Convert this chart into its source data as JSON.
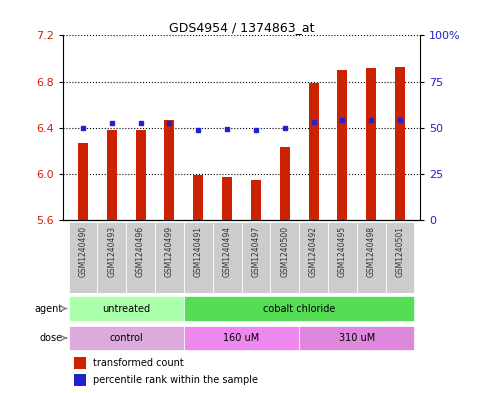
{
  "title": "GDS4954 / 1374863_at",
  "samples": [
    "GSM1240490",
    "GSM1240493",
    "GSM1240496",
    "GSM1240499",
    "GSM1240491",
    "GSM1240494",
    "GSM1240497",
    "GSM1240500",
    "GSM1240492",
    "GSM1240495",
    "GSM1240498",
    "GSM1240501"
  ],
  "bar_values": [
    6.27,
    6.38,
    6.38,
    6.47,
    5.99,
    5.97,
    5.95,
    6.23,
    6.79,
    6.9,
    6.92,
    6.93
  ],
  "dot_values": [
    6.4,
    6.44,
    6.44,
    6.44,
    6.38,
    6.39,
    6.38,
    6.4,
    6.45,
    6.47,
    6.47,
    6.47
  ],
  "bar_base": 5.6,
  "ylim": [
    5.6,
    7.2
  ],
  "yticks_left": [
    5.6,
    6.0,
    6.4,
    6.8,
    7.2
  ],
  "yticks_right": [
    0,
    25,
    50,
    75,
    100
  ],
  "bar_color": "#cc2200",
  "dot_color": "#2222cc",
  "agent_groups": [
    {
      "label": "untreated",
      "start": 0,
      "end": 4,
      "color": "#aaffaa"
    },
    {
      "label": "cobalt chloride",
      "start": 4,
      "end": 12,
      "color": "#55dd55"
    }
  ],
  "dose_groups": [
    {
      "label": "control",
      "start": 0,
      "end": 4,
      "color": "#ddaadd"
    },
    {
      "label": "160 uM",
      "start": 4,
      "end": 8,
      "color": "#ee88ee"
    },
    {
      "label": "310 uM",
      "start": 8,
      "end": 12,
      "color": "#dd88dd"
    }
  ],
  "legend_bar_label": "transformed count",
  "legend_dot_label": "percentile rank within the sample",
  "agent_label": "agent",
  "dose_label": "dose",
  "bar_width": 0.35,
  "bar_color_hex": "#cc2200",
  "dot_color_hex": "#2222cc",
  "axis_label_color_left": "#cc2200",
  "axis_label_color_right": "#2222cc",
  "sample_box_color": "#cccccc",
  "sample_text_color": "#333333"
}
